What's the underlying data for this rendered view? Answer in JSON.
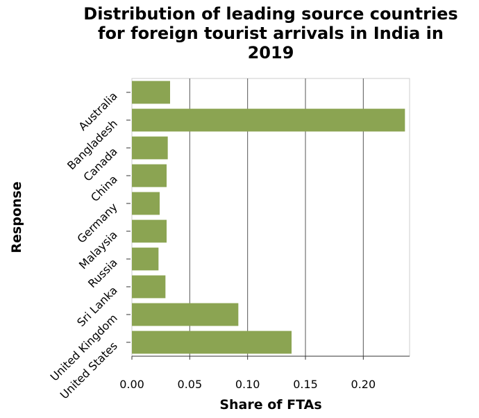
{
  "chart_data": {
    "type": "bar",
    "orientation": "horizontal",
    "title": "Distribution of leading source countries for foreign tourist arrivals in India in 2019",
    "title_lines": [
      "Distribution of leading source countries",
      "for foreign tourist arrivals in India in",
      "2019"
    ],
    "xlabel": "Share of FTAs",
    "ylabel": "Response",
    "categories": [
      "Australia",
      "Bangladesh",
      "Canada",
      "China",
      "Germany",
      "Malaysia",
      "Russia",
      "Sri Lanka",
      "United Kingdom",
      "United States"
    ],
    "values": [
      0.033,
      0.236,
      0.031,
      0.03,
      0.024,
      0.03,
      0.023,
      0.029,
      0.092,
      0.138
    ],
    "xticks": [
      "0.00",
      "0.05",
      "0.10",
      "0.15",
      "0.20"
    ],
    "xtick_values": [
      0,
      0.05,
      0.1,
      0.15,
      0.2
    ],
    "xlim": [
      0,
      0.24
    ],
    "grid": "vertical",
    "bar_color": "#8ba452"
  }
}
